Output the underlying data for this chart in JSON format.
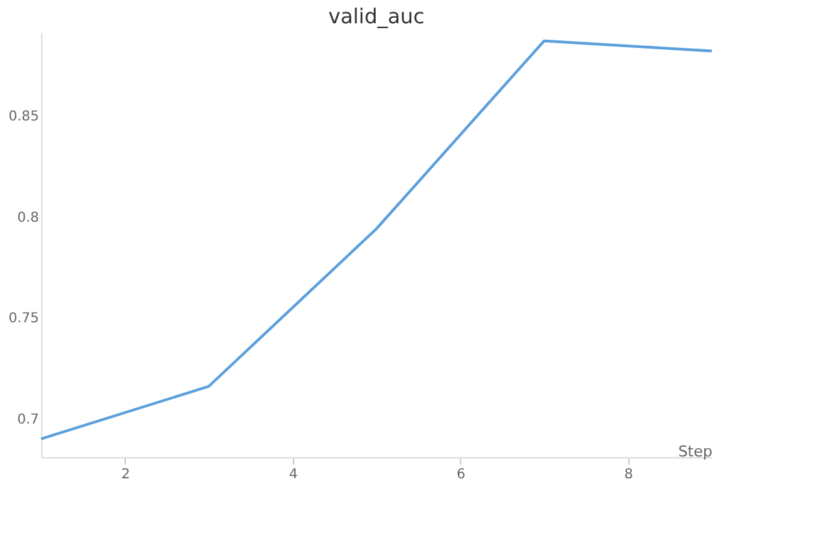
{
  "chart_data": {
    "type": "line",
    "title": "valid_auc",
    "xlabel": "Step",
    "x": [
      1,
      3,
      5,
      7,
      9
    ],
    "series": [
      {
        "color": "#5b9fdc",
        "values": [
          0.69,
          0.716,
          0.794,
          0.887,
          0.882
        ]
      }
    ],
    "xlim": [
      1,
      9
    ],
    "xticks": [
      2,
      4,
      6,
      8
    ],
    "ylim": [
      0.681,
      0.891
    ],
    "yticks": [
      0.7,
      0.75,
      0.8,
      0.85
    ],
    "grid": false
  }
}
